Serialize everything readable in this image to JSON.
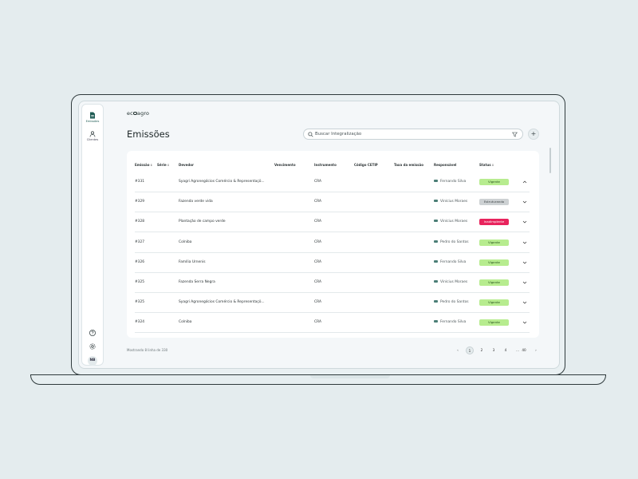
{
  "brand": {
    "logo_prefix": "ec",
    "logo_suffix": "agro"
  },
  "sidebar": {
    "items": [
      {
        "label": "Emissões",
        "icon": "document-icon",
        "active": true
      },
      {
        "label": "Clientes",
        "icon": "users-icon",
        "active": false
      }
    ],
    "bottom": {
      "help_icon": "help-icon",
      "settings_icon": "gear-icon",
      "avatar": "NB"
    }
  },
  "header": {
    "title": "Emissões",
    "search_placeholder": "Buscar Integralização"
  },
  "table": {
    "columns": {
      "emissao": "Emissão",
      "serie": "Série",
      "devedor": "Devedor",
      "vencimento": "Vencimento",
      "instrumento": "Instrumento",
      "codigo_cetip": "Código CETIP",
      "taxa": "Taxa da emissão",
      "responsavel": "Responsável",
      "status": "Status"
    },
    "rows": [
      {
        "emissao": "#331",
        "devedor": "Syagri Agronegócios Comércio & Representaçõ...",
        "instrumento": "CRA",
        "responsavel": "Fernando Silva",
        "status": "Vigente",
        "status_kind": "vigente",
        "expanded": true
      },
      {
        "emissao": "#329",
        "devedor": "Fazenda verde vida",
        "instrumento": "CRA",
        "responsavel": "Vinícius Moraes",
        "status": "Estruturando",
        "status_kind": "estruturando",
        "expanded": false
      },
      {
        "emissao": "#328",
        "devedor": "Plantação de campo verde",
        "instrumento": "CRA",
        "responsavel": "Vinícius Moraes",
        "status": "Inadimplente",
        "status_kind": "inadimplente",
        "expanded": false
      },
      {
        "emissao": "#327",
        "devedor": "Colniba",
        "instrumento": "CRA",
        "responsavel": "Pedro do Santos",
        "status": "Vigente",
        "status_kind": "vigente",
        "expanded": false
      },
      {
        "emissao": "#326",
        "devedor": "Família Urnenis",
        "instrumento": "CRA",
        "responsavel": "Fernando Silva",
        "status": "Vigente",
        "status_kind": "vigente",
        "expanded": false
      },
      {
        "emissao": "#325",
        "devedor": "Fazenda Serra Negra",
        "instrumento": "CRA",
        "responsavel": "Vinícius Moraes",
        "status": "Vigente",
        "status_kind": "vigente",
        "expanded": false
      },
      {
        "emissao": "#325",
        "devedor": "Syagri Agronegócios Comércio & Representaçõ...",
        "instrumento": "CRA",
        "responsavel": "Pedro do Santos",
        "status": "Vigente",
        "status_kind": "vigente",
        "expanded": false
      },
      {
        "emissao": "#324",
        "devedor": "Colniba",
        "instrumento": "CRA",
        "responsavel": "Fernando Silva",
        "status": "Vigente",
        "status_kind": "vigente",
        "expanded": false
      }
    ]
  },
  "footer": {
    "summary": "Mostrando 8 linha de 330",
    "pages": [
      "1",
      "2",
      "3",
      "4",
      "...",
      "40"
    ],
    "current_page": "1",
    "prev_label": "‹",
    "next_label": "›"
  },
  "colors": {
    "vigente": "#b7ec8f",
    "estruturando": "#cdd1d3",
    "inadimplente": "#e8245d",
    "accent": "#1e5b54"
  }
}
